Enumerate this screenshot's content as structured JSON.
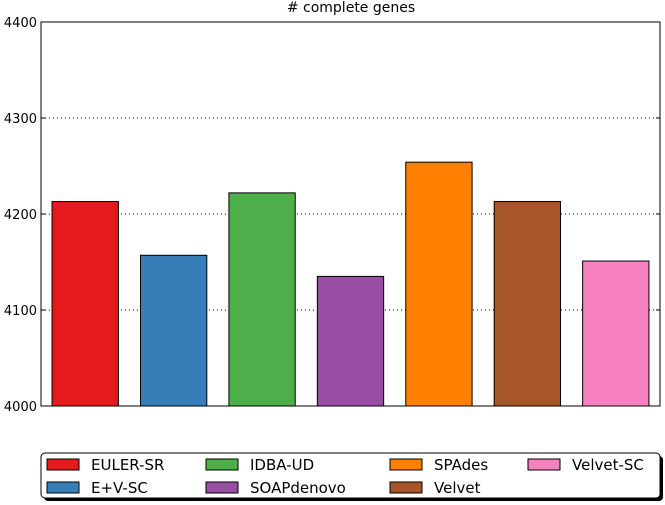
{
  "chart_data": {
    "type": "bar",
    "title": "# complete genes",
    "xlabel": "",
    "ylabel": "",
    "categories": [
      "EULER-SR",
      "E+V-SC",
      "IDBA-UD",
      "SOAPdenovo",
      "SPAdes",
      "Velvet",
      "Velvet-SC"
    ],
    "values": [
      4213,
      4157,
      4222,
      4135,
      4254,
      4213,
      4151
    ],
    "colors": [
      "#e41a1c",
      "#377eb8",
      "#4daf4a",
      "#984ea3",
      "#ff7f00",
      "#a65628",
      "#f781bf"
    ],
    "ylim": [
      4000,
      4400
    ],
    "yticks": [
      4000,
      4100,
      4200,
      4300,
      4400
    ],
    "ytick_labels": [
      "4000",
      "4100",
      "4200",
      "4300",
      "4400"
    ],
    "grid": "horizontal dotted",
    "legend_position": "bottom",
    "legend_columns": 4
  }
}
